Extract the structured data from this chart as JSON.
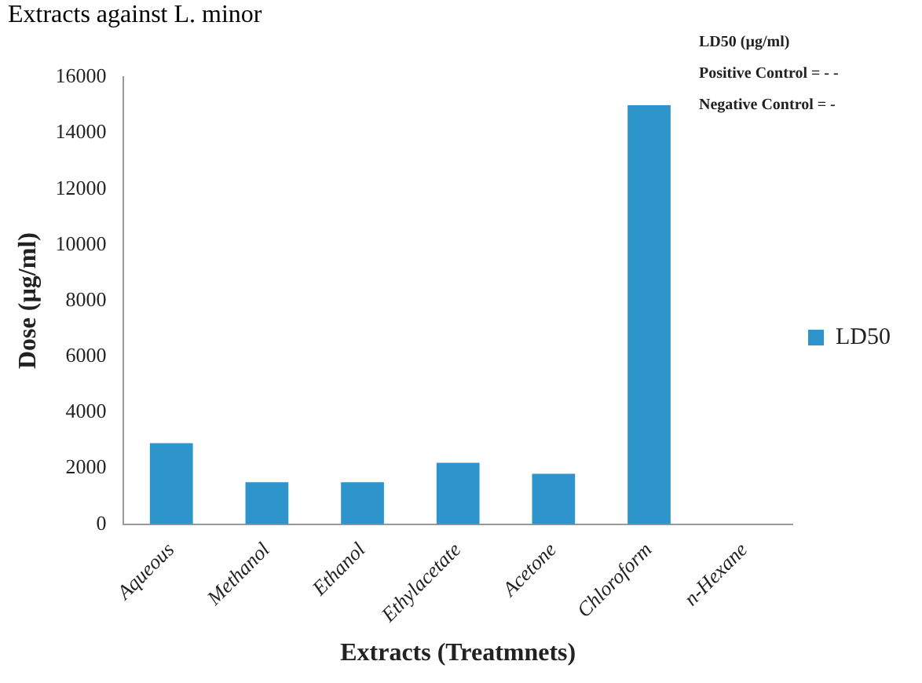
{
  "chart_data": {
    "type": "bar",
    "title": "Extracts against L. minor",
    "xlabel": "Extracts (Treatmnets)",
    "ylabel": "Dose (µg/ml)",
    "categories": [
      "Aqueous",
      "Methanol",
      "Ethanol",
      "Ethylacetate",
      "Acetone",
      "Chloroform",
      "n-Hexane"
    ],
    "series": [
      {
        "name": "LD50",
        "color": "#2e95cc",
        "values": [
          2900,
          1500,
          1500,
          2200,
          1800,
          15000,
          0
        ]
      }
    ],
    "ylim": [
      0,
      16000
    ],
    "yticks": [
      0,
      2000,
      4000,
      6000,
      8000,
      10000,
      12000,
      14000,
      16000
    ],
    "annotations": [
      "LD50 (µg/ml)",
      "Positive Control = - -",
      "Negative Control = -"
    ],
    "grid": false,
    "legend": "right"
  }
}
